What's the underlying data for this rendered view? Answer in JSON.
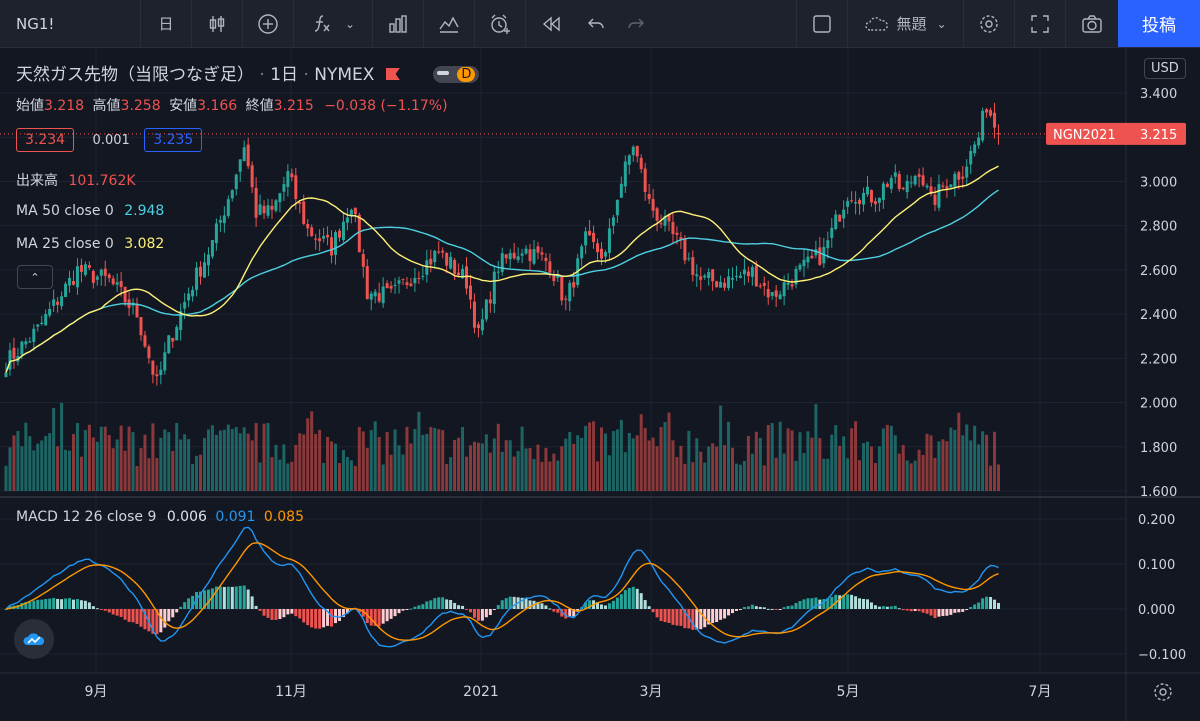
{
  "toolbar": {
    "symbol": "NG1!",
    "interval": "日",
    "layout_name": "無題",
    "post_label": "投稿"
  },
  "header": {
    "title": "天然ガス先物（当限つなぎ足）",
    "interval": "1日",
    "exchange": "NYMEX",
    "badge_d": "D",
    "currency": "USD"
  },
  "ohlc": {
    "open_label": "始値",
    "open": "3.218",
    "high_label": "高値",
    "high": "3.258",
    "low_label": "安値",
    "low": "3.166",
    "close_label": "終値",
    "close": "3.215",
    "change": "−0.038 (−1.17%)"
  },
  "quote": {
    "bid": "3.234",
    "spread": "0.001",
    "ask": "3.235"
  },
  "indicators": {
    "volume_label": "出来高",
    "volume_value": "101.762K",
    "ma50_label": "MA 50 close 0",
    "ma50_value": "2.948",
    "ma25_label": "MA 25 close 0",
    "ma25_value": "3.082",
    "macd_label": "MACD 12 26 close 9",
    "macd_hist": "0.006",
    "macd_line": "0.091",
    "macd_signal": "0.085"
  },
  "price_tag": {
    "label": "NGN2021",
    "value": "3.215"
  },
  "colors": {
    "up": "#26a69a",
    "down": "#ef5350",
    "ma25": "#fff176",
    "ma50": "#4dd0e1",
    "macd": "#2196f3",
    "signal": "#ff9800",
    "accent": "#2962ff"
  },
  "icons": [
    "candles-icon",
    "plus-circle-icon",
    "fx-icon",
    "bar-chart-icon",
    "indicators-icon",
    "alarm-icon",
    "replay-icon",
    "undo-icon",
    "redo-icon",
    "cloud-icon",
    "gear-icon",
    "fullscreen-icon",
    "camera-icon",
    "settings-icon"
  ],
  "chart_data": [
    {
      "type": "candlestick",
      "title": "天然ガス先物（当限つなぎ足）",
      "ylabel": "USD",
      "ylim": [
        1.6,
        3.45
      ],
      "yticks": [
        "3.400",
        "3.200",
        "3.000",
        "2.800",
        "2.600",
        "2.400",
        "2.200",
        "2.000",
        "1.800",
        "1.600"
      ],
      "xticks": [
        "9月",
        "11月",
        "2021",
        "3月",
        "5月",
        "7月"
      ],
      "last_price": 3.215,
      "last_ohlc": {
        "open": 3.218,
        "high": 3.258,
        "low": 3.166,
        "close": 3.215,
        "change": -0.038
      },
      "close_path_anchors": [
        {
          "t": 0,
          "v": 2.18
        },
        {
          "t": 8,
          "v": 2.33
        },
        {
          "t": 18,
          "v": 2.6
        },
        {
          "t": 26,
          "v": 2.55
        },
        {
          "t": 33,
          "v": 2.4
        },
        {
          "t": 38,
          "v": 2.08
        },
        {
          "t": 41,
          "v": 2.27
        },
        {
          "t": 46,
          "v": 2.5
        },
        {
          "t": 52,
          "v": 2.72
        },
        {
          "t": 57,
          "v": 2.98
        },
        {
          "t": 60,
          "v": 3.17
        },
        {
          "t": 63,
          "v": 2.86
        },
        {
          "t": 67,
          "v": 2.86
        },
        {
          "t": 71,
          "v": 3.03
        },
        {
          "t": 76,
          "v": 2.78
        },
        {
          "t": 82,
          "v": 2.7
        },
        {
          "t": 87,
          "v": 2.91
        },
        {
          "t": 91,
          "v": 2.5
        },
        {
          "t": 97,
          "v": 2.48
        },
        {
          "t": 102,
          "v": 2.57
        },
        {
          "t": 109,
          "v": 2.68
        },
        {
          "t": 116,
          "v": 2.55
        },
        {
          "t": 119,
          "v": 2.3
        },
        {
          "t": 124,
          "v": 2.62
        },
        {
          "t": 130,
          "v": 2.7
        },
        {
          "t": 137,
          "v": 2.63
        },
        {
          "t": 141,
          "v": 2.45
        },
        {
          "t": 146,
          "v": 2.73
        },
        {
          "t": 151,
          "v": 2.66
        },
        {
          "t": 154,
          "v": 2.94
        },
        {
          "t": 158,
          "v": 3.17
        },
        {
          "t": 162,
          "v": 2.9
        },
        {
          "t": 166,
          "v": 2.8
        },
        {
          "t": 170,
          "v": 2.7
        },
        {
          "t": 175,
          "v": 2.55
        },
        {
          "t": 181,
          "v": 2.55
        },
        {
          "t": 188,
          "v": 2.59
        },
        {
          "t": 193,
          "v": 2.48
        },
        {
          "t": 199,
          "v": 2.58
        },
        {
          "t": 206,
          "v": 2.68
        },
        {
          "t": 212,
          "v": 2.95
        },
        {
          "t": 219,
          "v": 2.93
        },
        {
          "t": 223,
          "v": 3.02
        },
        {
          "t": 226,
          "v": 2.95
        },
        {
          "t": 230,
          "v": 3.06
        },
        {
          "t": 233,
          "v": 2.9
        },
        {
          "t": 237,
          "v": 3.0
        },
        {
          "t": 241,
          "v": 3.05
        },
        {
          "t": 245,
          "v": 3.2
        },
        {
          "t": 247,
          "v": 3.35
        },
        {
          "t": 250,
          "v": 3.215
        }
      ]
    },
    {
      "type": "bar",
      "title": "出来高",
      "last_value": "101.762K"
    },
    {
      "type": "line",
      "title": "MACD 12 26 close 9",
      "ylim": [
        -0.12,
        0.22
      ],
      "yticks": [
        "0.200",
        "0.100",
        "0.000",
        "−0.100"
      ],
      "series": [
        {
          "name": "macd",
          "last": 0.091
        },
        {
          "name": "signal",
          "last": 0.085
        },
        {
          "name": "histogram",
          "last": 0.006
        }
      ]
    }
  ]
}
